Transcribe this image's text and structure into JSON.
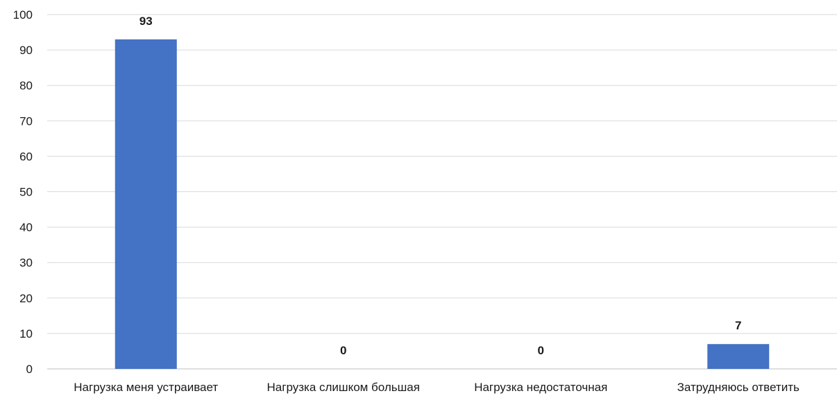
{
  "chart_data": {
    "type": "bar",
    "categories": [
      "Нагрузка меня устраивает",
      "Нагрузка слишком большая",
      "Нагрузка недостаточная",
      "Затрудняюсь ответить"
    ],
    "values": [
      93,
      0,
      0,
      7
    ],
    "data_labels": [
      "93",
      "0",
      "0",
      "7"
    ],
    "yticks": [
      "0",
      "10",
      "20",
      "30",
      "40",
      "50",
      "60",
      "70",
      "80",
      "90",
      "100"
    ],
    "ylim": [
      0,
      100
    ],
    "title": "",
    "xlabel": "",
    "ylabel": "",
    "grid": true,
    "legend": "none",
    "bar_color": "#4472C4"
  }
}
